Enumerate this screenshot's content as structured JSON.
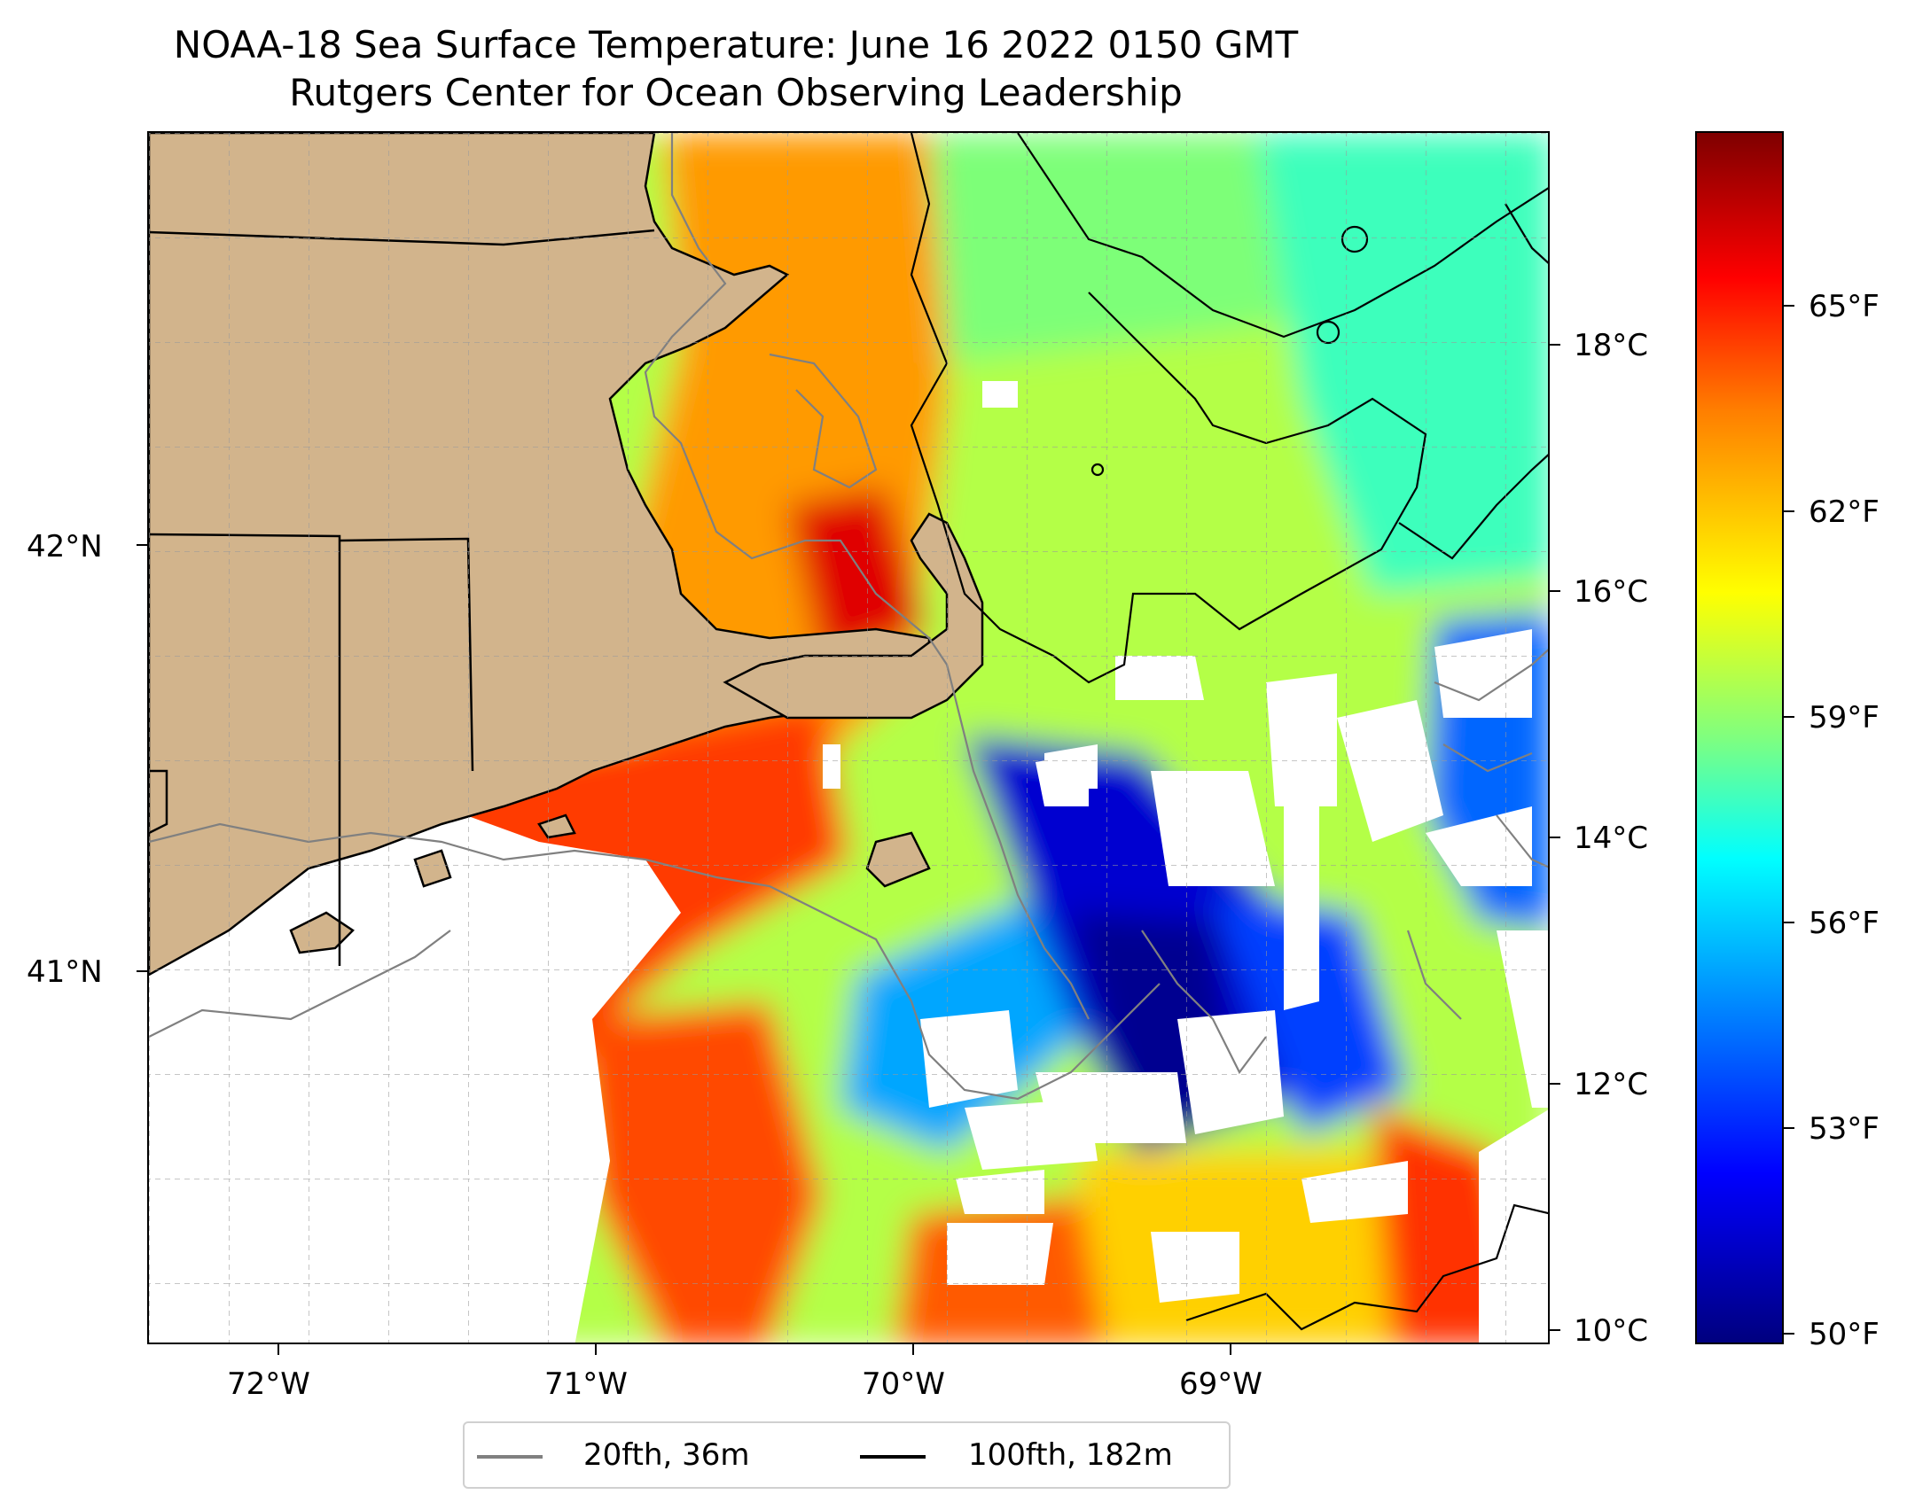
{
  "title": {
    "line1": "NOAA-18 Sea Surface Temperature: June 16 2022 0150 GMT",
    "line2": "Rutgers Center for Ocean Observing Leadership"
  },
  "map": {
    "lon_ticks": [
      "72°W",
      "71°W",
      "70°W",
      "69°W"
    ],
    "lat_ticks": [
      "42°N",
      "41°N"
    ],
    "lon_range": [
      -72.42,
      -68.0
    ],
    "lat_range": [
      40.14,
      42.98
    ],
    "land_color": "#d2b48c",
    "missing_color": "#ffffff",
    "colormap": "jet"
  },
  "colorbar": {
    "celsius_ticks": [
      "18°C",
      "16°C",
      "14°C",
      "12°C",
      "10°C"
    ],
    "fahrenheit_ticks": [
      "65°F",
      "62°F",
      "59°F",
      "56°F",
      "53°F",
      "50°F"
    ],
    "range_c": [
      9.8,
      19.6
    ]
  },
  "legend": {
    "items": [
      {
        "label": "20fth, 36m",
        "color": "#808080"
      },
      {
        "label": "100fth, 182m",
        "color": "#000000"
      }
    ]
  }
}
